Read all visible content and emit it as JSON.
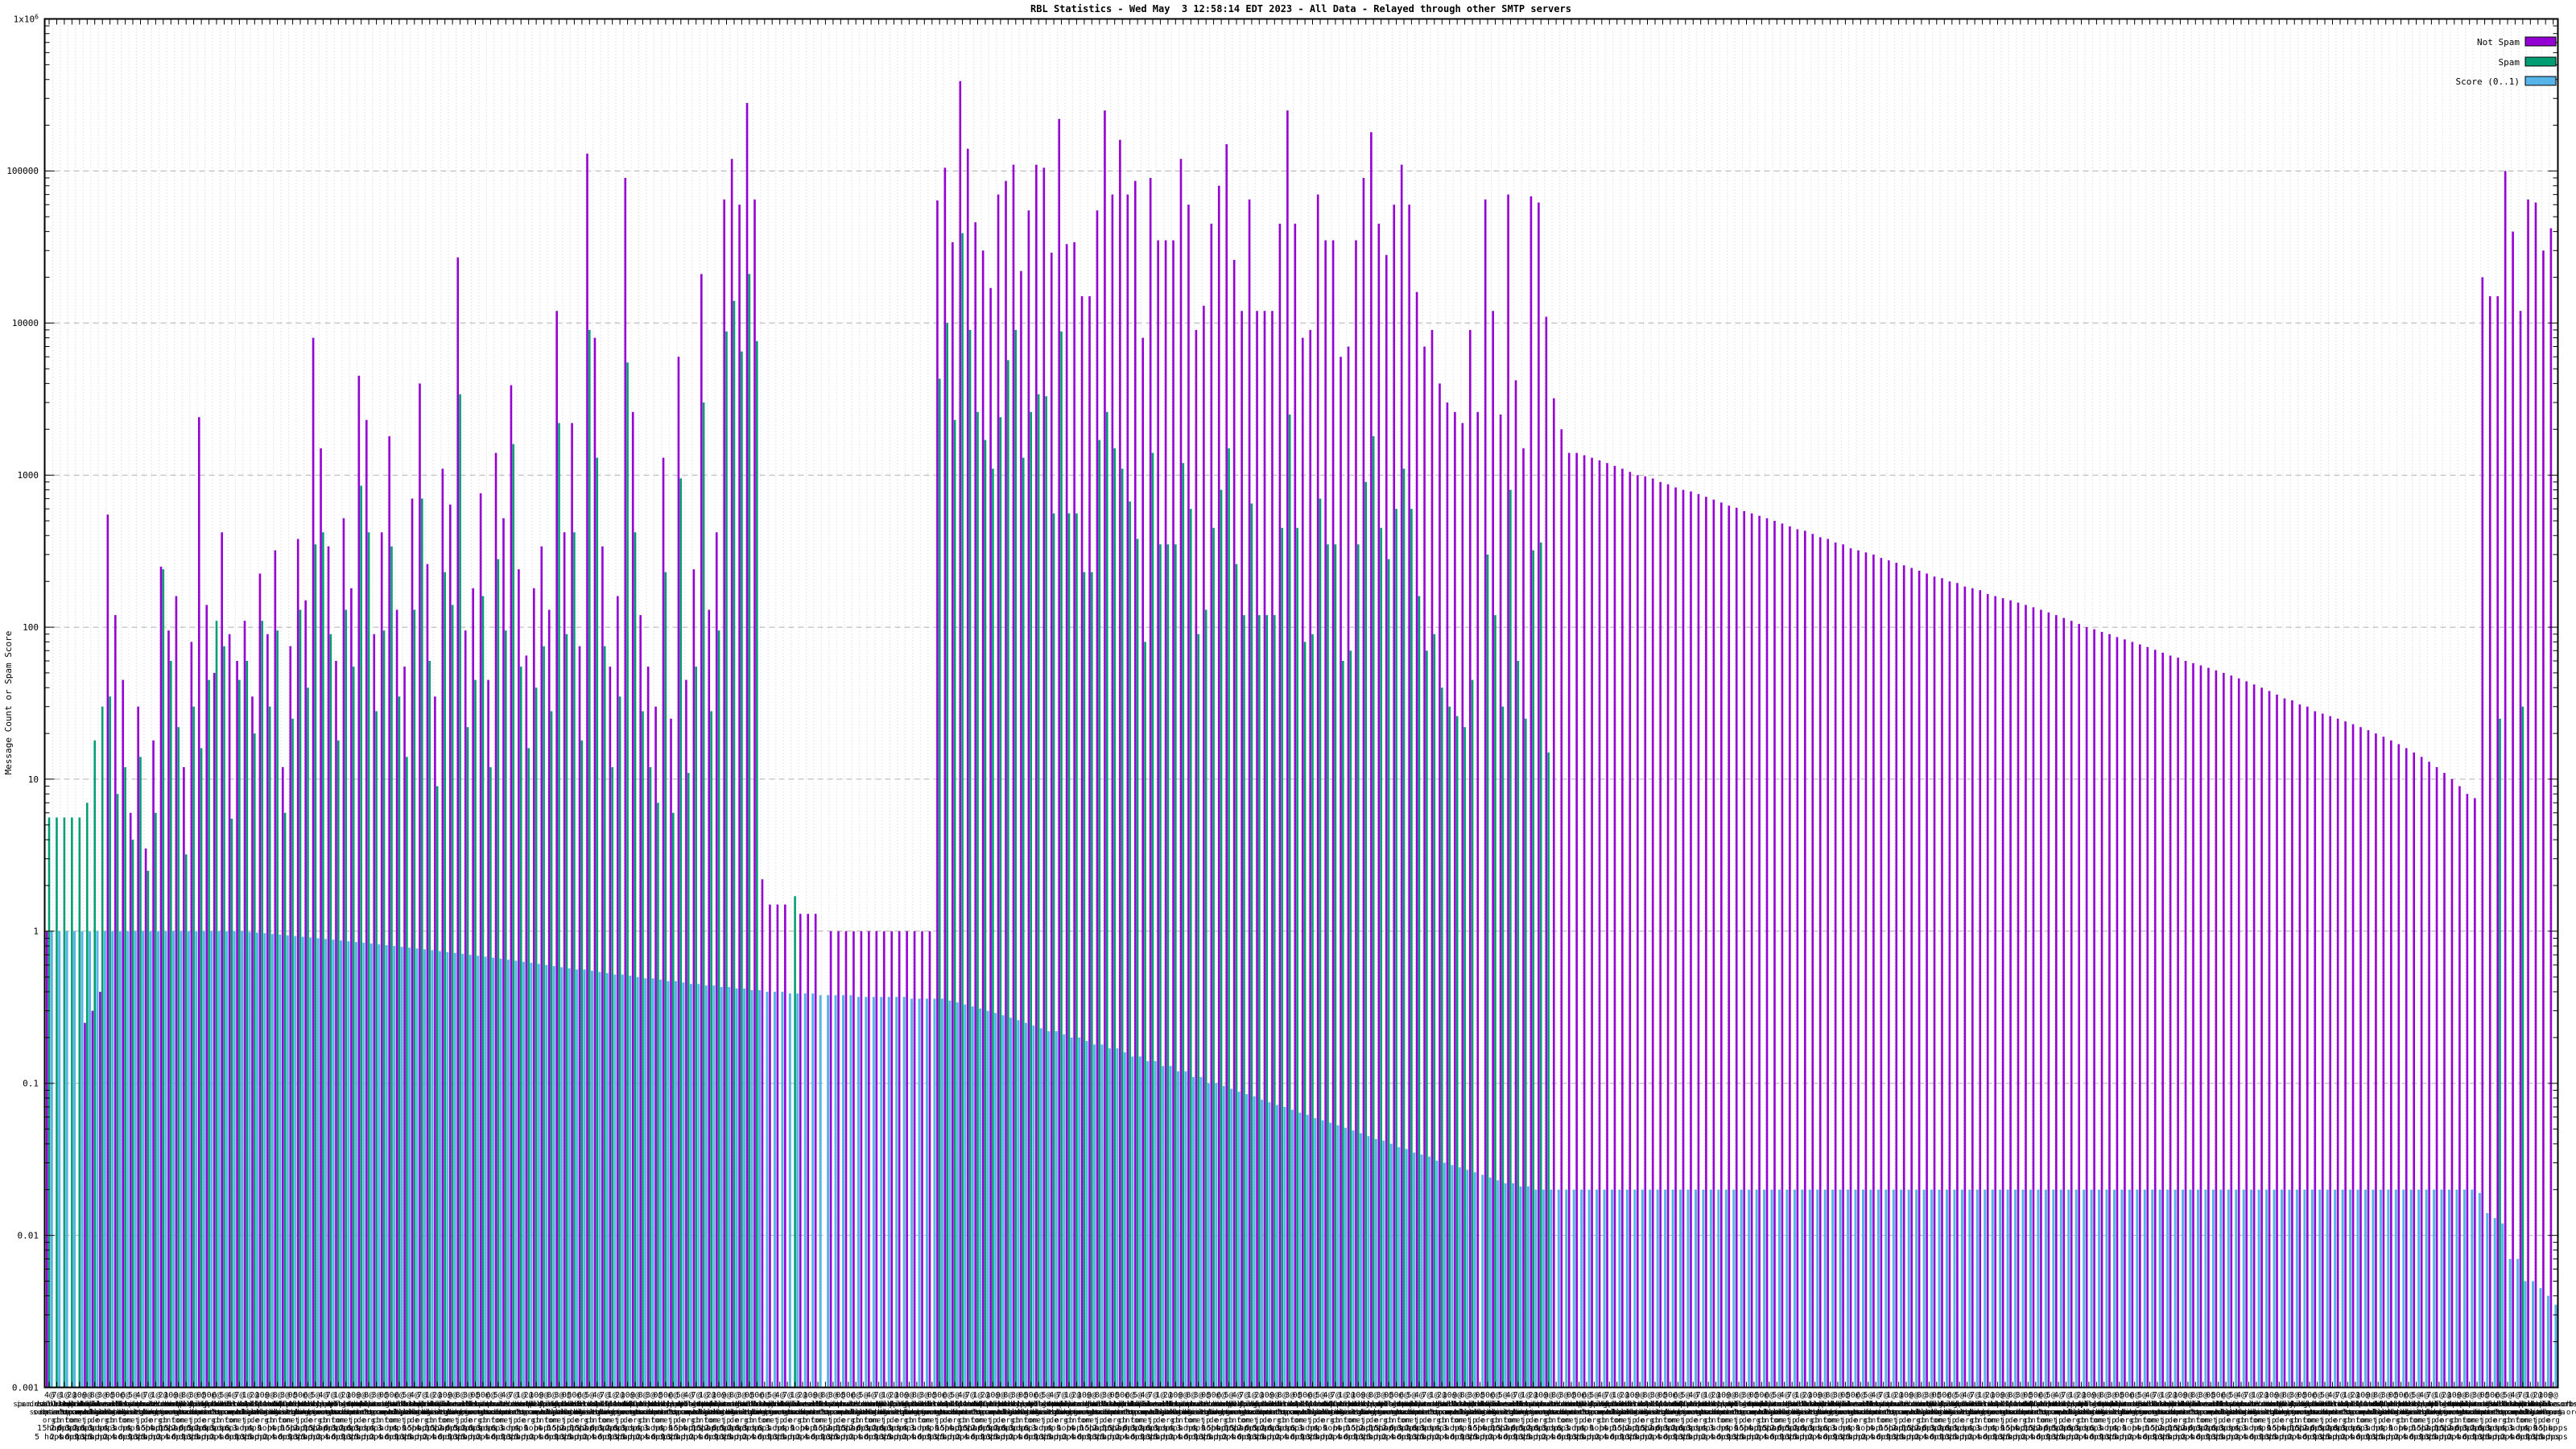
{
  "window": {
    "title": "RBL Statistics"
  },
  "colors": {
    "background": "#ffffff",
    "axis": "#000000",
    "grid_major": "#b0b0b0",
    "grid_minor": "#cfcfcf",
    "not_spam": "#9400D3",
    "spam": "#009E73",
    "score": "#56B4E9"
  },
  "chart_data": {
    "type": "bar",
    "title": "RBL Statistics - Wed May  3 12:58:14 EDT 2023 - All Data - Relayed through other SMTP servers",
    "xlabel": "",
    "ylabel": "Message Count or Spam Score",
    "log_y": true,
    "ylim": [
      0.001,
      1000000
    ],
    "grid": true,
    "legend_position": "top-right",
    "n_categories": 330,
    "yticks": [
      {
        "label": "1x10^6",
        "value": 1000000
      },
      {
        "label": "100000",
        "value": 100000
      },
      {
        "label": "10000",
        "value": 10000
      },
      {
        "label": "1000",
        "value": 1000
      },
      {
        "label": "100",
        "value": 100
      },
      {
        "label": "10",
        "value": 10
      },
      {
        "label": "1",
        "value": 1
      },
      {
        "label": "0.1",
        "value": 0.1
      },
      {
        "label": "0.01",
        "value": 0.01
      },
      {
        "label": "0.001",
        "value": 0.001
      }
    ],
    "legend": [
      {
        "name": "Not Spam",
        "color": "#9400D3"
      },
      {
        "name": "Spam",
        "color": "#009E73"
      },
      {
        "name": "Score (0..1)",
        "color": "#56B4E9"
      }
    ],
    "xtick_pools": {
      "counts": [
        "2@",
        "6@",
        "9@",
        "4@",
        "3@",
        "1@",
        "50@",
        "10@",
        "5@",
        "8@",
        "7@",
        "0@"
      ],
      "names": [
        "dnsbl-1.uceprotect",
        "bl.spamcop",
        "zen.spamhaus",
        "b.barracudacentral",
        "dnsbl.sorbs",
        "ix.dnsbl.manitu",
        "psbl.surriel",
        "bl.0spam",
        "dnsbl.dronebl",
        "db.wpbl.info",
        "all.spamrats",
        "bl.mailspike",
        "truncate.gbudb",
        "dnsbl.spfbl",
        "cbl.abuseat",
        "list.dsbl",
        "multi.surbl",
        "rbl.interserver",
        "spam.dnsbl.anonmails",
        "dyna.spamrats",
        "ubl.unsubscore",
        "bl.blocklist.de",
        "combined.abuse.ch",
        "drone.abuse.ch",
        "httpbl.abuse.ch",
        "korea.services",
        "relays.bl.gweep",
        "residential.block",
        "singular.ttk.pte",
        "virus.rbl.jp",
        "wormrbl.imp",
        "z.mailspike",
        "dul.dnsbl.sorbs",
        "http.dnsbl.sorbs",
        "misc.dnsbl.sorbs",
        "smtp.dnsbl.sorbs",
        "socks.dnsbl.sorbs",
        "web.dnsbl.sorbs",
        "zombie.dnsbl.sorbs",
        "rbl.efnetrbl",
        "tor.dan.me",
        "opm.tornevall",
        "access.redhawk",
        "all.s5h",
        "babl.rbl.webiron",
        "cidr.bl.mcafee"
      ],
      "names2": [
        "uceprotect",
        "spamhaus.org",
        "sorbs.net",
        "abuseat.org",
        "spamcop.net",
        "mailspike.net",
        "0spam.org",
        "manitu.net",
        "wpbl.info",
        "spamrats.com",
        "barracuda",
        "gbudb.net",
        "blocklist.de",
        "surriel.com",
        "dronebl.org",
        "interserver.net",
        "unsubscore.com",
        "tornevall.org",
        "webiron.com",
        "redhawk.org"
      ],
      "tlds": [
        "net",
        "org",
        "com",
        "de",
        "info",
        "jp",
        "ch"
      ],
      "hops": [
        "1 hop",
        "2 hops",
        "3 hops",
        "4 hops",
        "5 hops",
        "6 hops",
        ""
      ]
    },
    "series": {
      "not_spam": [
        1,
        0,
        0,
        0,
        0,
        0.25,
        0.3,
        0.4,
        550,
        120,
        45,
        6,
        30,
        3.5,
        18,
        250,
        95,
        160,
        12,
        80,
        2400,
        140,
        50,
        420,
        90,
        60,
        110,
        35,
        225,
        90,
        320,
        12,
        75,
        380,
        150,
        8000,
        1500,
        340,
        60,
        520,
        180,
        4500,
        2300,
        90,
        420,
        1800,
        130,
        55,
        700,
        4000,
        260,
        35,
        1100,
        640,
        27000,
        95,
        180,
        760,
        45,
        1400,
        520,
        3900,
        240,
        65,
        180,
        340,
        130,
        12000,
        420,
        2200,
        75,
        130000,
        8000,
        340,
        55,
        160,
        90000,
        2600,
        120,
        55,
        30,
        1300,
        25,
        6000,
        45,
        240,
        21000,
        130,
        420,
        65000,
        120000,
        60000,
        280000,
        65000,
        2.2,
        1.5,
        1.5,
        1.5,
        0,
        1.3,
        1.3,
        1.3,
        0,
        1,
        1,
        1,
        1,
        1,
        1,
        1,
        1,
        1,
        1,
        1,
        1,
        1,
        1,
        64000,
        105000,
        34000,
        390000,
        140000,
        46000,
        30000,
        17000,
        70000,
        86000,
        110000,
        22000,
        55000,
        110000,
        105000,
        29000,
        220000,
        33000,
        34000,
        15000,
        15000,
        55000,
        250000,
        70000,
        160000,
        70000,
        86000,
        8000,
        90000,
        35000,
        35000,
        35000,
        120000,
        60000,
        9000,
        13000,
        45000,
        80000,
        150000,
        26000,
        12000,
        65000,
        12000,
        12000,
        12000,
        45000,
        250000,
        45000,
        8000,
        9000,
        70000,
        35000,
        35000,
        6000,
        7000,
        35000,
        90000,
        180000,
        45000,
        28000,
        60000,
        110000,
        60000,
        16000,
        7000,
        9000,
        4000,
        3000,
        2600,
        2200,
        9000,
        2600,
        65000,
        12000,
        2500,
        70000,
        4200,
        1500,
        68000,
        62000,
        11000,
        3200,
        2000,
        1400,
        1400,
        1350,
        1300,
        1250,
        1200,
        1150,
        1100,
        1050,
        1000,
        980,
        950,
        900,
        870,
        830,
        800,
        780,
        750,
        720,
        690,
        660,
        630,
        610,
        580,
        560,
        540,
        520,
        500,
        480,
        460,
        440,
        430,
        410,
        390,
        380,
        360,
        350,
        330,
        320,
        310,
        300,
        285,
        275,
        265,
        255,
        245,
        235,
        225,
        215,
        210,
        200,
        195,
        185,
        180,
        175,
        165,
        160,
        155,
        150,
        145,
        140,
        135,
        130,
        125,
        120,
        115,
        110,
        105,
        100,
        97,
        93,
        90,
        86,
        83,
        80,
        77,
        74,
        71,
        68,
        65,
        63,
        60,
        58,
        56,
        54,
        52,
        50,
        48,
        46,
        44,
        42,
        40,
        38,
        36,
        34,
        33,
        31,
        30,
        28,
        27,
        26,
        25,
        24,
        23,
        22,
        21,
        20,
        19,
        18,
        17,
        16,
        15,
        14,
        13,
        12,
        11,
        10,
        9,
        8,
        7.5,
        20000,
        15000,
        15000,
        100000,
        40000,
        12000,
        65000,
        62000,
        30000,
        42000
      ],
      "spam": [
        5.6,
        5.6,
        5.6,
        5.6,
        5.6,
        7,
        18,
        30,
        35,
        8,
        12,
        4,
        14,
        2.5,
        6,
        240,
        60,
        22,
        3.2,
        30,
        16,
        45,
        110,
        75,
        5.5,
        45,
        60,
        20,
        110,
        30,
        95,
        6,
        25,
        130,
        40,
        350,
        420,
        90,
        18,
        130,
        55,
        850,
        420,
        28,
        95,
        340,
        35,
        14,
        130,
        700,
        60,
        9,
        230,
        140,
        3400,
        22,
        45,
        160,
        12,
        280,
        95,
        1600,
        55,
        16,
        40,
        75,
        28,
        2200,
        90,
        420,
        18,
        9000,
        1300,
        75,
        12,
        35,
        5500,
        420,
        28,
        12,
        7,
        230,
        6,
        950,
        11,
        55,
        3000,
        28,
        95,
        8800,
        14000,
        6500,
        21000,
        7600,
        0,
        0,
        0,
        0,
        1.7,
        0,
        0,
        0,
        0,
        0,
        0,
        0,
        0,
        0,
        0,
        0,
        0,
        0,
        0,
        0,
        0,
        0,
        0,
        4300,
        10000,
        2300,
        39000,
        9000,
        2600,
        1700,
        1100,
        2400,
        5700,
        9000,
        1300,
        2600,
        3400,
        3300,
        560,
        8800,
        560,
        560,
        230,
        230,
        1700,
        2600,
        1500,
        1100,
        670,
        380,
        80,
        1400,
        350,
        350,
        350,
        1200,
        600,
        90,
        130,
        450,
        800,
        1500,
        260,
        120,
        650,
        120,
        120,
        120,
        450,
        2500,
        450,
        80,
        90,
        700,
        350,
        350,
        60,
        70,
        350,
        900,
        1800,
        450,
        280,
        600,
        1100,
        600,
        160,
        70,
        90,
        40,
        30,
        26,
        22,
        45,
        0,
        300,
        120,
        30,
        800,
        60,
        25,
        320,
        360,
        15,
        0,
        0,
        0,
        0,
        0,
        0,
        0,
        0,
        0,
        0,
        0,
        0,
        0,
        0,
        0,
        0,
        0,
        0,
        0,
        0,
        0,
        0,
        0,
        0,
        0,
        0,
        0,
        0,
        0,
        0,
        0,
        0,
        0,
        0,
        0,
        0,
        0,
        0,
        0,
        0,
        0,
        0,
        0,
        0,
        0,
        0,
        0,
        0,
        0,
        0,
        0,
        0,
        0,
        0,
        0,
        0,
        0,
        0,
        0,
        0,
        0,
        0,
        0,
        0,
        0,
        0,
        0,
        0,
        0,
        0,
        0,
        0,
        0,
        0,
        0,
        0,
        0,
        0,
        0,
        0,
        0,
        0,
        0,
        0,
        0,
        0,
        0,
        0,
        0,
        0,
        0,
        0,
        0,
        0,
        0,
        0,
        0,
        0,
        0,
        0,
        0,
        0,
        0,
        0,
        0,
        0,
        0,
        0,
        0,
        0,
        0,
        0,
        0,
        0,
        0,
        0,
        0,
        0,
        0,
        0,
        0,
        0,
        0,
        0,
        25,
        0,
        0,
        30,
        0,
        0,
        0,
        0
      ],
      "score": [
        1,
        1,
        1,
        1,
        1,
        1,
        1,
        1,
        1,
        1,
        1,
        1,
        1,
        1,
        1,
        1,
        1,
        1,
        1,
        1,
        1,
        1,
        1,
        1,
        1,
        1,
        0.99,
        0.98,
        0.97,
        0.96,
        0.95,
        0.94,
        0.93,
        0.92,
        0.91,
        0.9,
        0.89,
        0.88,
        0.87,
        0.86,
        0.85,
        0.84,
        0.83,
        0.82,
        0.81,
        0.8,
        0.79,
        0.78,
        0.77,
        0.76,
        0.75,
        0.74,
        0.73,
        0.72,
        0.71,
        0.7,
        0.69,
        0.68,
        0.67,
        0.66,
        0.65,
        0.64,
        0.63,
        0.62,
        0.61,
        0.6,
        0.59,
        0.58,
        0.57,
        0.56,
        0.56,
        0.55,
        0.54,
        0.53,
        0.52,
        0.52,
        0.51,
        0.5,
        0.49,
        0.49,
        0.48,
        0.47,
        0.47,
        0.46,
        0.45,
        0.45,
        0.44,
        0.44,
        0.43,
        0.43,
        0.42,
        0.42,
        0.41,
        0.41,
        0.4,
        0.4,
        0.4,
        0.39,
        0.39,
        0.39,
        0.39,
        0.38,
        0.38,
        0.38,
        0.38,
        0.38,
        0.37,
        0.37,
        0.37,
        0.37,
        0.37,
        0.37,
        0.37,
        0.36,
        0.36,
        0.36,
        0.36,
        0.36,
        0.35,
        0.34,
        0.33,
        0.32,
        0.31,
        0.3,
        0.29,
        0.28,
        0.27,
        0.26,
        0.25,
        0.24,
        0.23,
        0.22,
        0.22,
        0.21,
        0.2,
        0.2,
        0.19,
        0.18,
        0.18,
        0.17,
        0.17,
        0.16,
        0.15,
        0.15,
        0.14,
        0.14,
        0.13,
        0.13,
        0.12,
        0.12,
        0.11,
        0.11,
        0.1,
        0.1,
        0.096,
        0.092,
        0.088,
        0.085,
        0.082,
        0.078,
        0.075,
        0.072,
        0.07,
        0.067,
        0.064,
        0.062,
        0.059,
        0.057,
        0.055,
        0.053,
        0.051,
        0.049,
        0.047,
        0.045,
        0.043,
        0.042,
        0.04,
        0.038,
        0.037,
        0.035,
        0.034,
        0.033,
        0.031,
        0.03,
        0.029,
        0.028,
        0.027,
        0.026,
        0.025,
        0.024,
        0.023,
        0.022,
        0.022,
        0.021,
        0.021,
        0.02,
        0.02,
        0.02,
        0.02,
        0.02,
        0.02,
        0.02,
        0.02,
        0.02,
        0.02,
        0.02,
        0.02,
        0.02,
        0.02,
        0.02,
        0.02,
        0.02,
        0.02,
        0.02,
        0.02,
        0.02,
        0.02,
        0.02,
        0.02,
        0.02,
        0.02,
        0.02,
        0.02,
        0.02,
        0.02,
        0.02,
        0.02,
        0.02,
        0.02,
        0.02,
        0.02,
        0.02,
        0.02,
        0.02,
        0.02,
        0.02,
        0.02,
        0.02,
        0.02,
        0.02,
        0.02,
        0.02,
        0.02,
        0.02,
        0.02,
        0.02,
        0.02,
        0.02,
        0.02,
        0.02,
        0.02,
        0.02,
        0.02,
        0.02,
        0.02,
        0.02,
        0.02,
        0.02,
        0.02,
        0.02,
        0.02,
        0.02,
        0.02,
        0.02,
        0.02,
        0.02,
        0.02,
        0.02,
        0.02,
        0.02,
        0.02,
        0.02,
        0.02,
        0.02,
        0.02,
        0.02,
        0.02,
        0.02,
        0.02,
        0.02,
        0.02,
        0.02,
        0.02,
        0.02,
        0.02,
        0.02,
        0.02,
        0.02,
        0.02,
        0.02,
        0.02,
        0.02,
        0.02,
        0.02,
        0.02,
        0.02,
        0.02,
        0.02,
        0.02,
        0.02,
        0.02,
        0.02,
        0.02,
        0.02,
        0.02,
        0.02,
        0.02,
        0.02,
        0.02,
        0.02,
        0.02,
        0.02,
        0.02,
        0.02,
        0.02,
        0.02,
        0.02,
        0.02,
        0.02,
        0.019,
        0.014,
        0.013,
        0.012,
        0.007,
        0.007,
        0.005,
        0.005,
        0.0045,
        0.004,
        0.0035
      ]
    }
  }
}
